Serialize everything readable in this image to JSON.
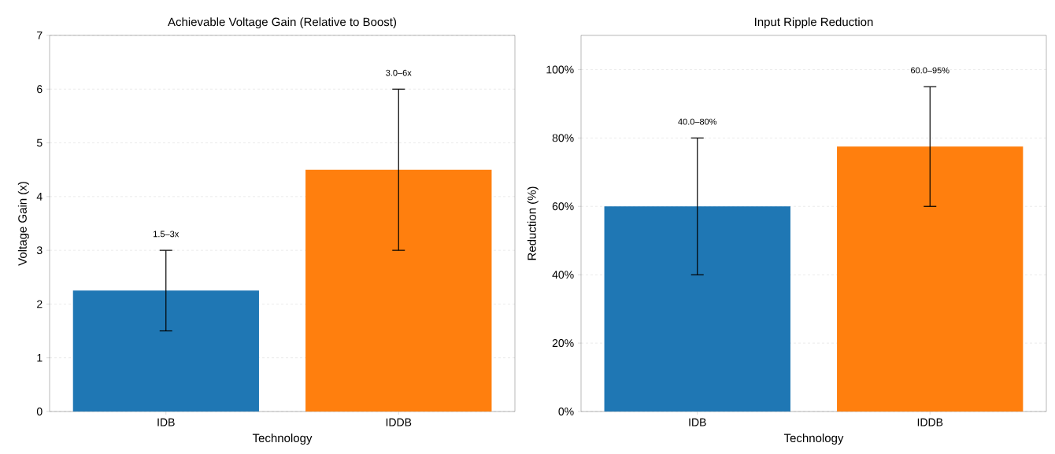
{
  "chart_data": [
    {
      "type": "bar",
      "title": "Achievable Voltage Gain (Relative to Boost)",
      "xlabel": "Technology",
      "ylabel": "Voltage Gain (x)",
      "categories": [
        "IDB",
        "IDDB"
      ],
      "values": [
        2.25,
        4.5
      ],
      "colors": [
        "#1f77b4",
        "#ff7f0e"
      ],
      "errors": [
        [
          1.5,
          3
        ],
        [
          3,
          6
        ]
      ],
      "ylim": [
        0,
        7
      ],
      "yticks": [
        0,
        1,
        2,
        3,
        4,
        5,
        6,
        7
      ],
      "grid": "y",
      "annotations": [
        {
          "text": "1.5–3x",
          "x": "IDB",
          "y": 3
        },
        {
          "text": "3.0–6x",
          "x": "IDDB",
          "y": 6
        }
      ]
    },
    {
      "type": "bar",
      "title": "Input Ripple Reduction",
      "xlabel": "Technology",
      "ylabel": "Reduction (%)",
      "categories": [
        "IDB",
        "IDDB"
      ],
      "values": [
        60,
        77.5
      ],
      "colors": [
        "#1f77b4",
        "#ff7f0e"
      ],
      "errors": [
        [
          40,
          80
        ],
        [
          60,
          95
        ]
      ],
      "ylim": [
        0,
        110
      ],
      "yticks": [
        {
          "value": 0,
          "label": "0%"
        },
        {
          "value": 20,
          "label": "20%"
        },
        {
          "value": 40,
          "label": "40%"
        },
        {
          "value": 60,
          "label": "60%"
        },
        {
          "value": 80,
          "label": "80%"
        },
        {
          "value": 100,
          "label": "100%"
        }
      ],
      "grid": "y",
      "annotations": [
        {
          "text": "40.0–80%",
          "x": "IDB",
          "y": 80
        },
        {
          "text": "60.0–95%",
          "x": "IDDB",
          "y": 95
        }
      ]
    }
  ]
}
